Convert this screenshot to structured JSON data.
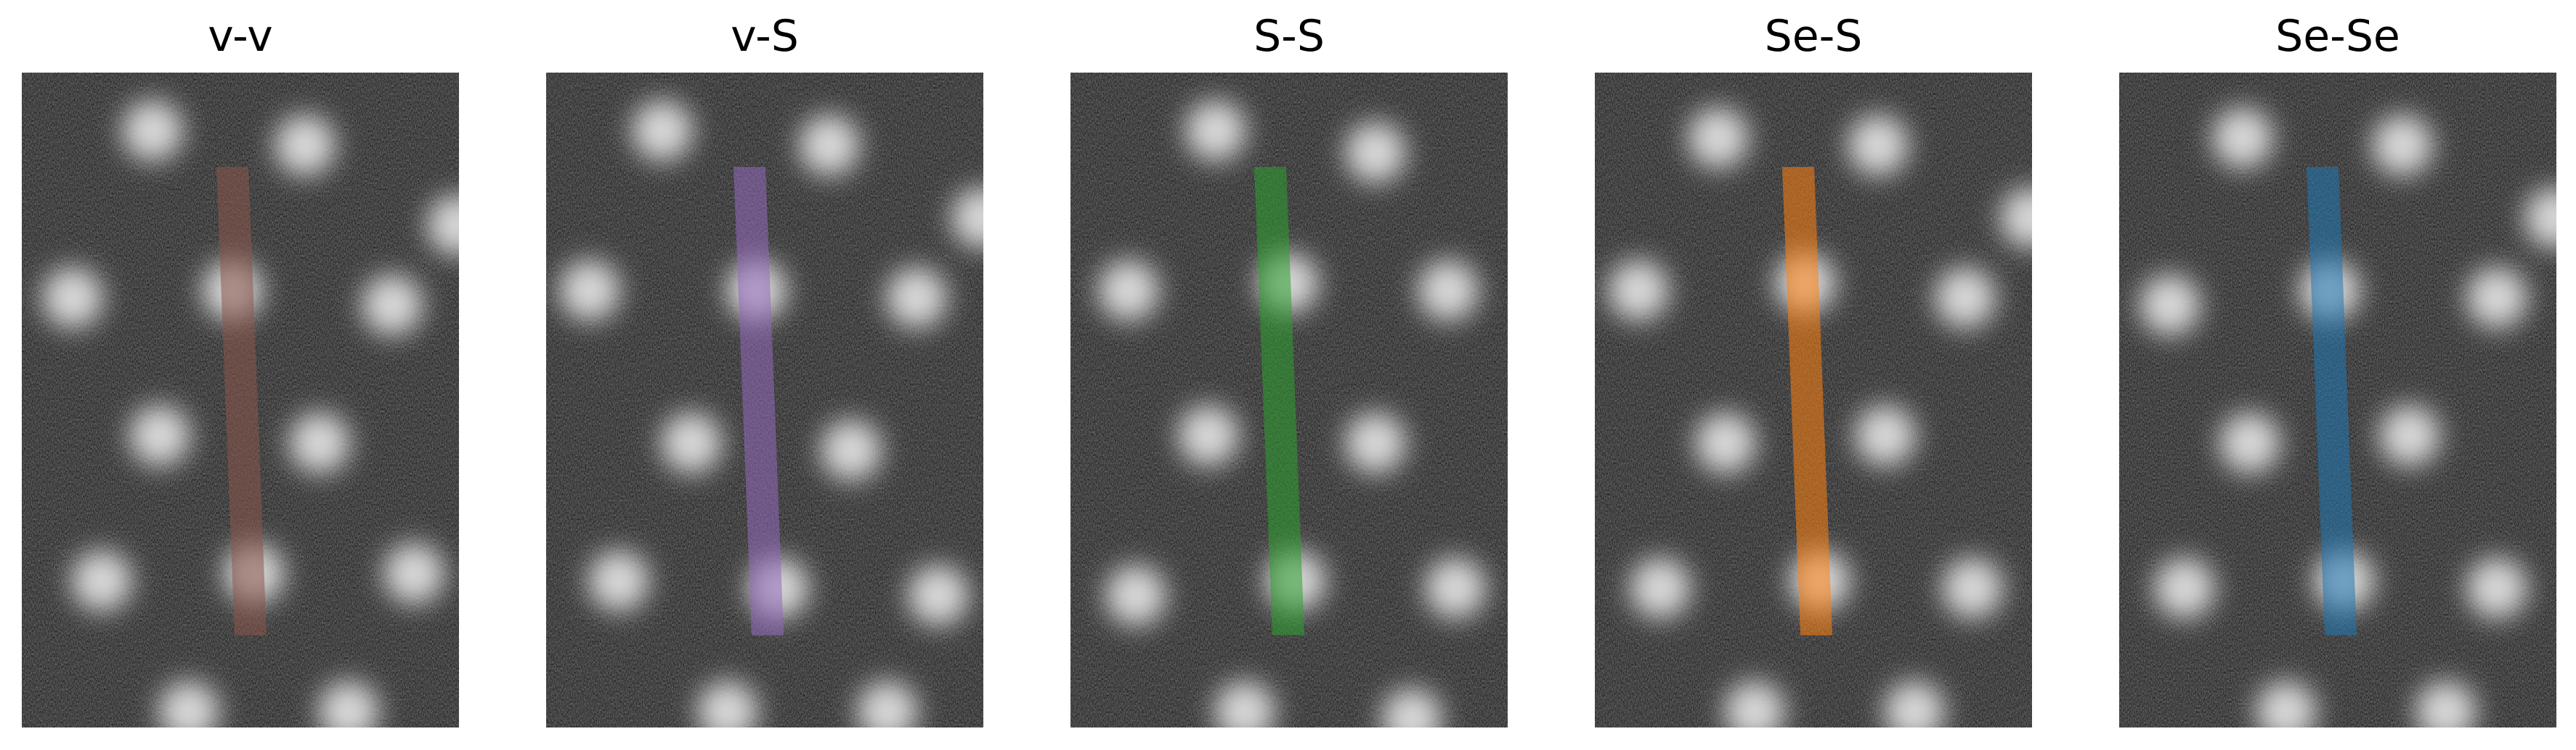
{
  "panels": [
    {
      "title": "v-v",
      "overlay_color": "#8c564b"
    },
    {
      "title": "v-S",
      "overlay_color": "#9467bd"
    },
    {
      "title": "S-S",
      "overlay_color": "#2ca02c"
    },
    {
      "title": "Se-S",
      "overlay_color": "#ff7f0e"
    },
    {
      "title": "Se-Se",
      "overlay_color": "#1f77b4"
    }
  ]
}
